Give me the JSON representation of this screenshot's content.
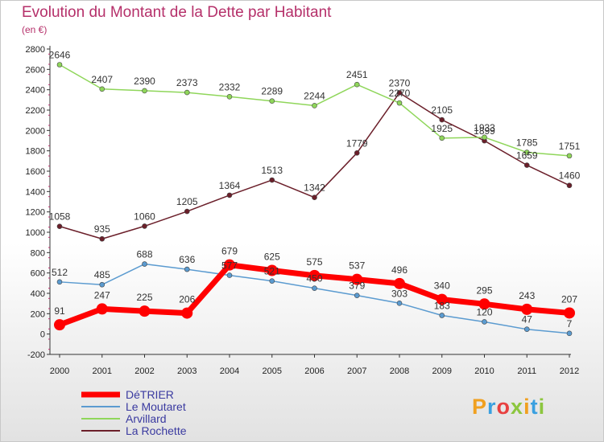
{
  "chart_data": {
    "type": "line",
    "title": "Evolution du Montant de la Dette par Habitant",
    "subtitle": "(en €)",
    "x": [
      "2000",
      "2001",
      "2002",
      "2003",
      "2004",
      "2005",
      "2006",
      "2007",
      "2008",
      "2009",
      "2010",
      "2011",
      "2012"
    ],
    "ylim": [
      -200,
      2800
    ],
    "yticks": [
      -200,
      0,
      200,
      400,
      600,
      800,
      1000,
      1200,
      1400,
      1600,
      1800,
      2000,
      2200,
      2400,
      2600,
      2800
    ],
    "grid": false,
    "legend": "bottom-left",
    "series": [
      {
        "name": "La Rochette",
        "color": "#6b1f2a",
        "values": [
          1058,
          935,
          1060,
          1205,
          1364,
          1513,
          1342,
          1779,
          2370,
          2105,
          1899,
          1659,
          1460
        ]
      },
      {
        "name": "Arvillard",
        "color": "#8fd65a",
        "values": [
          2646,
          2407,
          2390,
          2373,
          2332,
          2289,
          2244,
          2451,
          2270,
          1925,
          1933,
          1785,
          1751
        ]
      },
      {
        "name": "Le Moutaret",
        "color": "#5b9bd0",
        "values": [
          512,
          485,
          688,
          636,
          577,
          521,
          450,
          379,
          303,
          183,
          120,
          47,
          7
        ]
      },
      {
        "name": "DéTRIER",
        "color": "#ff0000",
        "values": [
          91,
          247,
          225,
          206,
          679,
          625,
          575,
          537,
          496,
          340,
          295,
          243,
          207
        ]
      }
    ]
  },
  "legend": {
    "items": [
      {
        "label": "DéTRIER",
        "color": "#ff0000"
      },
      {
        "label": "Le Moutaret",
        "color": "#5b9bd0"
      },
      {
        "label": "Arvillard",
        "color": "#8fd65a"
      },
      {
        "label": "La Rochette",
        "color": "#6b1f2a"
      }
    ]
  },
  "brand": {
    "text": "Proxiti",
    "colors": [
      "#f0a020",
      "#3aa0e0",
      "#e84040",
      "#8cc63f",
      "#f0a020",
      "#3aa0e0",
      "#8cc63f"
    ]
  }
}
